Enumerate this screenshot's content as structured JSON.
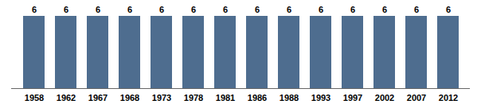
{
  "chart_data": {
    "type": "bar",
    "categories": [
      "1958",
      "1962",
      "1967",
      "1968",
      "1973",
      "1978",
      "1981",
      "1986",
      "1988",
      "1993",
      "1997",
      "2002",
      "2007",
      "2012"
    ],
    "values": [
      6,
      6,
      6,
      6,
      6,
      6,
      6,
      6,
      6,
      6,
      6,
      6,
      6,
      6
    ],
    "color": "#4e6d8f",
    "ylim": [
      0,
      6
    ],
    "data_labels": true,
    "tick_labels": "x",
    "grid": false
  }
}
